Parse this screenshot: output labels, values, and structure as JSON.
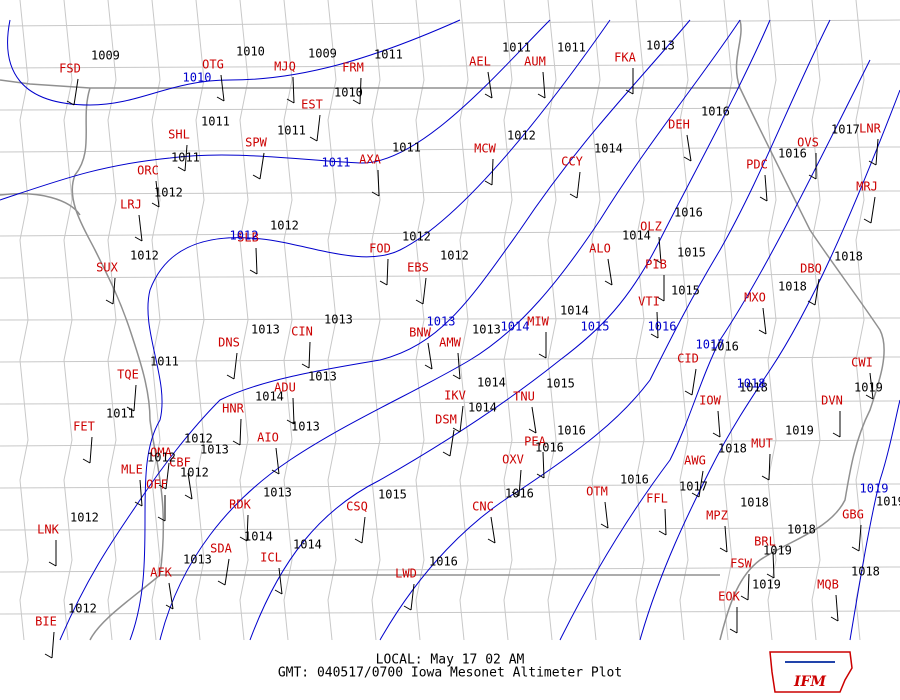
{
  "footer": {
    "local": "LOCAL: May 17 02 AM",
    "gmt": "GMT: 040517/0700 Iowa Mesonet Altimeter Plot",
    "logo": "IFM"
  },
  "stations": [
    {
      "id": "FSD",
      "pressure": 1009
    },
    {
      "id": "OTG",
      "pressure": 1010
    },
    {
      "id": "MJQ",
      "pressure": 1009
    },
    {
      "id": "FRM",
      "pressure": 1011
    },
    {
      "id": "EST",
      "pressure": 1010
    },
    {
      "id": "AEL",
      "pressure": 1011
    },
    {
      "id": "AUM",
      "pressure": 1011
    },
    {
      "id": "FKA",
      "pressure": 1013
    },
    {
      "id": "SHL",
      "pressure": 1011
    },
    {
      "id": "SPW",
      "pressure": 1011
    },
    {
      "id": "ORC",
      "pressure": 1011
    },
    {
      "id": "AXA",
      "pressure": 1011
    },
    {
      "id": "MCW",
      "pressure": 1012
    },
    {
      "id": "CCY",
      "pressure": 1014
    },
    {
      "id": "DEH",
      "pressure": 1016
    },
    {
      "id": "PDC",
      "pressure": 1016
    },
    {
      "id": "OVS",
      "pressure": 1017
    },
    {
      "id": "LNR"
    },
    {
      "id": "MRJ"
    },
    {
      "id": "LRJ",
      "pressure": 1012
    },
    {
      "id": "SLB",
      "pressure": 1012
    },
    {
      "id": "FOD",
      "pressure": 1012
    },
    {
      "id": "EBS",
      "pressure": 1012
    },
    {
      "id": "ALO",
      "pressure": 1014
    },
    {
      "id": "OLZ",
      "pressure": 1016
    },
    {
      "id": "PIB",
      "pressure": 1015
    },
    {
      "id": "SUX",
      "pressure": 1012
    },
    {
      "id": "DBQ",
      "pressure": 1018
    },
    {
      "id": "MXO",
      "pressure": 1018
    },
    {
      "id": "VTI",
      "pressure": 1015
    },
    {
      "id": "CIN",
      "pressure": 1013
    },
    {
      "id": "DNS",
      "pressure": 1013
    },
    {
      "id": "BNW"
    },
    {
      "id": "AMW",
      "pressure": 1013
    },
    {
      "id": "MIW",
      "pressure": 1014
    },
    {
      "id": "TQE",
      "pressure": 1011
    },
    {
      "id": "CID",
      "pressure": 1016
    },
    {
      "id": "CWI"
    },
    {
      "id": "ADU",
      "pressure": 1013
    },
    {
      "id": "HNR",
      "pressure": 1014
    },
    {
      "id": "IKV",
      "pressure": 1014
    },
    {
      "id": "TNU",
      "pressure": 1015
    },
    {
      "id": "IOW",
      "pressure": 1018
    },
    {
      "id": "DVN",
      "pressure": 1019
    },
    {
      "id": "FET",
      "pressure": 1011
    },
    {
      "id": "DSM",
      "pressure": 1014
    },
    {
      "id": "AIO",
      "pressure": 1013
    },
    {
      "id": "PEA",
      "pressure": 1016
    },
    {
      "id": "MUT",
      "pressure": 1019
    },
    {
      "id": "OMA",
      "pressure": 1012
    },
    {
      "id": "CBF",
      "pressure": 1013
    },
    {
      "id": "MLE",
      "pressure": 1012
    },
    {
      "id": "OFF",
      "pressure": 1012
    },
    {
      "id": "OXV",
      "pressure": 1016
    },
    {
      "id": "AWG",
      "pressure": 1018
    },
    {
      "id": "OTM",
      "pressure": 1016
    },
    {
      "id": "FFL",
      "pressure": 1017
    },
    {
      "id": "RDK",
      "pressure": 1013
    },
    {
      "id": "CSQ",
      "pressure": 1015
    },
    {
      "id": "CNC",
      "pressure": 1016
    },
    {
      "id": "MPZ",
      "pressure": 1018
    },
    {
      "id": "LNK",
      "pressure": 1012
    },
    {
      "id": "GBG",
      "pressure": 1019
    },
    {
      "id": "SDA",
      "pressure": 1014
    },
    {
      "id": "ICL",
      "pressure": 1014
    },
    {
      "id": "BRL",
      "pressure": 1018
    },
    {
      "id": "FSW",
      "pressure": 1019
    },
    {
      "id": "LWD",
      "pressure": 1016
    },
    {
      "id": "AFK",
      "pressure": 1013
    },
    {
      "id": "MQB",
      "pressure": 1018
    },
    {
      "id": "EOK",
      "pressure": 1019
    },
    {
      "id": "BIE",
      "pressure": 1012
    }
  ],
  "isobars": [
    {
      "label": "1010"
    },
    {
      "label": "1011"
    },
    {
      "label": "1012"
    },
    {
      "label": "1013"
    },
    {
      "label": "1014"
    },
    {
      "label": "1015"
    },
    {
      "label": "1016"
    },
    {
      "label": "1017"
    },
    {
      "label": "1018"
    },
    {
      "label": "1019"
    }
  ]
}
